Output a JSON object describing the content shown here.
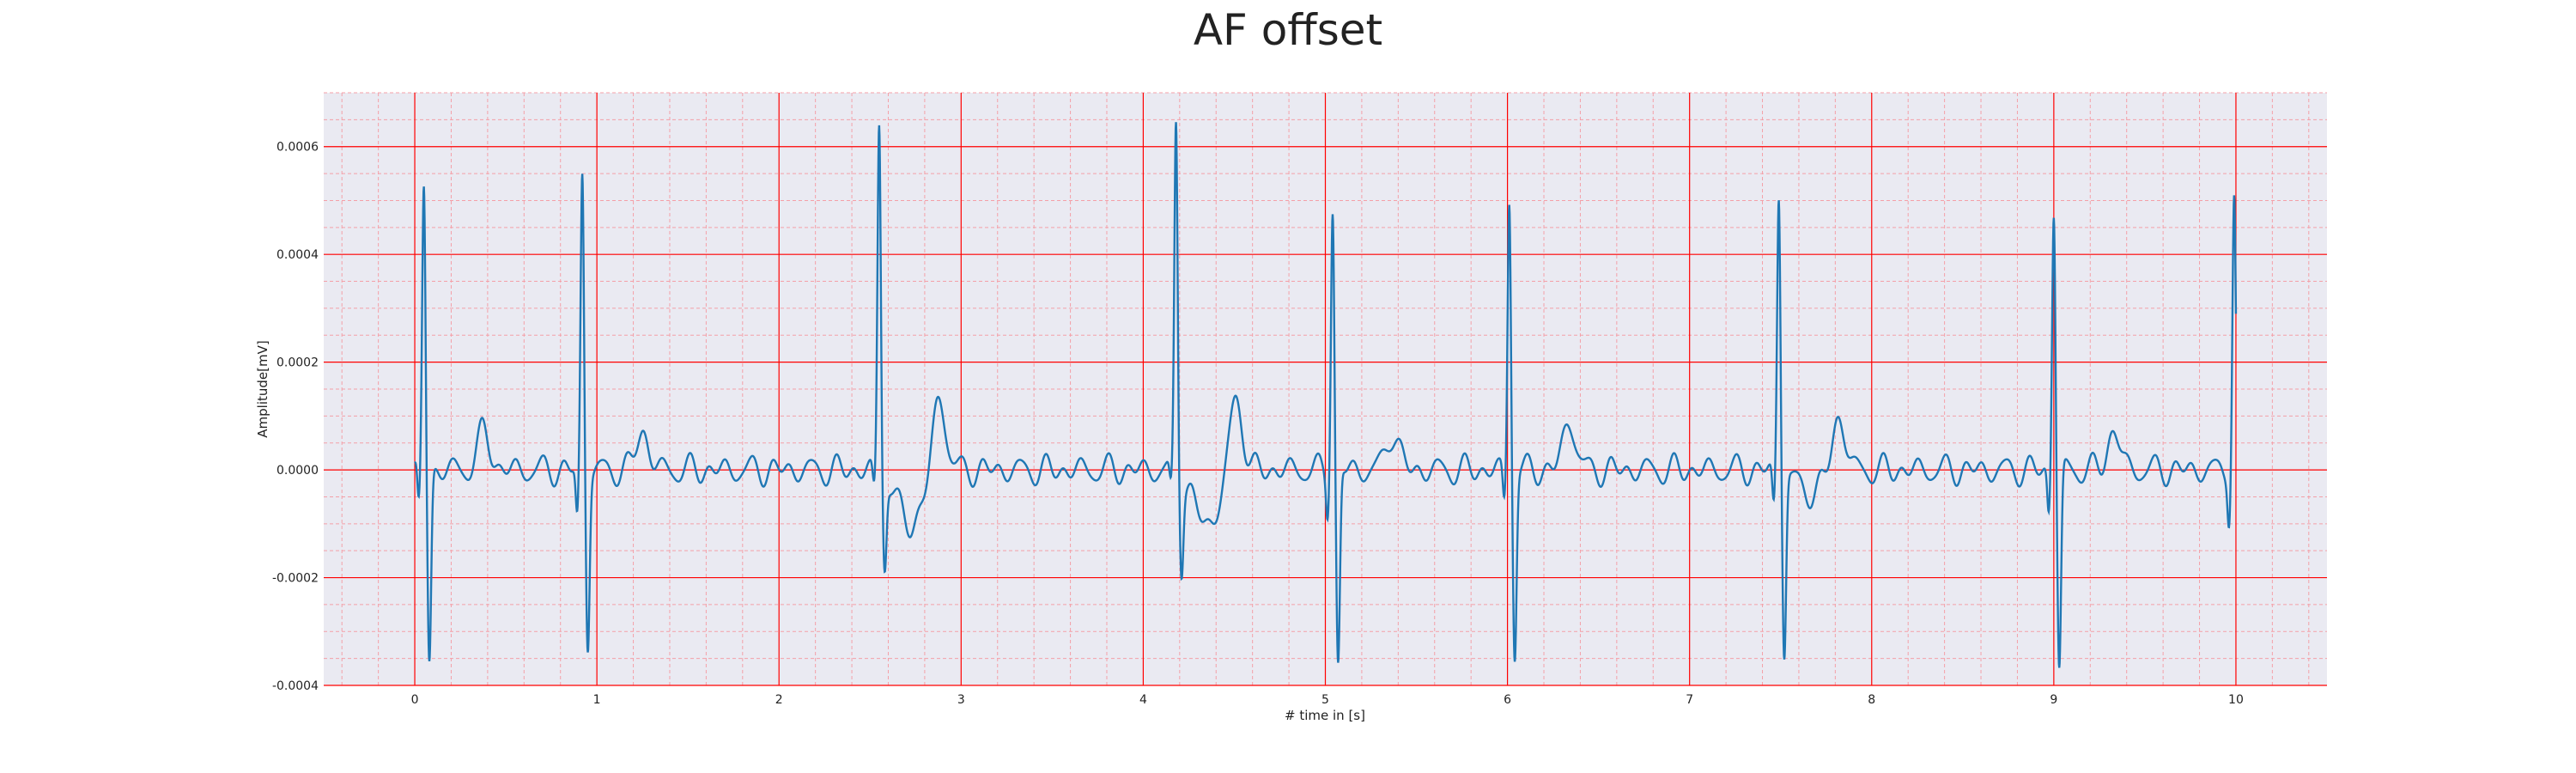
{
  "chart_data": {
    "type": "line",
    "title": "AF offset",
    "xlabel": "# time in [s]",
    "ylabel": "Amplitude[mV]",
    "xlim": [
      -0.5,
      10.5
    ],
    "ylim": [
      -0.0004,
      0.0007
    ],
    "xticks": [
      0,
      1,
      2,
      3,
      4,
      5,
      6,
      7,
      8,
      9,
      10
    ],
    "xtick_labels": [
      "0",
      "1",
      "2",
      "3",
      "4",
      "5",
      "6",
      "7",
      "8",
      "9",
      "10"
    ],
    "yticks": [
      -0.0004,
      -0.0002,
      0.0,
      0.0002,
      0.0004,
      0.0006
    ],
    "ytick_labels": [
      "-0.0004",
      "-0.0002",
      "0.0000",
      "0.0002",
      "0.0004",
      "0.0006"
    ],
    "grid": true,
    "minor_grid": true,
    "legend": "none",
    "colors": {
      "line": "#1f77b4",
      "background": "#eaeaf2",
      "major_grid": "#ff0000",
      "minor_grid": "#f4a0a8"
    },
    "series": [
      {
        "beats": [
          {
            "t": 0.05,
            "r": 0.00053,
            "s": -0.00035,
            "t_wave": 7e-05,
            "st_drop": 0.0,
            "pre": -8e-05
          },
          {
            "t": 0.92,
            "r": 0.00055,
            "s": -0.00032,
            "t_wave": 7e-05,
            "st_drop": 0.0,
            "pre": -9e-05
          },
          {
            "t": 2.55,
            "r": 0.00065,
            "s": -0.00016,
            "t_wave": 0.00014,
            "st_drop": -0.0001,
            "pre": -4e-05
          },
          {
            "t": 4.18,
            "r": 0.00065,
            "s": -0.00016,
            "t_wave": 0.00014,
            "st_drop": -0.0001,
            "pre": -4e-05
          },
          {
            "t": 5.04,
            "r": 0.00049,
            "s": -0.00037,
            "t_wave": 7e-05,
            "st_drop": 0.0,
            "pre": -7e-05
          },
          {
            "t": 6.01,
            "r": 0.00051,
            "s": -0.00034,
            "t_wave": 9e-05,
            "st_drop": 0.0,
            "pre": -6e-05
          },
          {
            "t": 7.49,
            "r": 0.00052,
            "s": -0.00033,
            "t_wave": 0.0001,
            "st_drop": -4e-05,
            "pre": -7e-05
          },
          {
            "t": 9.0,
            "r": 0.00049,
            "s": -0.00037,
            "t_wave": 7e-05,
            "st_drop": 0.0,
            "pre": -8e-05
          },
          {
            "t": 9.99,
            "r": 0.00051,
            "s": 0.0,
            "t_wave": 0.0,
            "st_drop": 0.0,
            "pre": -8e-05
          }
        ],
        "fibrillation_amplitude": 2e-05,
        "t_start": 0.0,
        "t_end": 10.0
      }
    ]
  }
}
